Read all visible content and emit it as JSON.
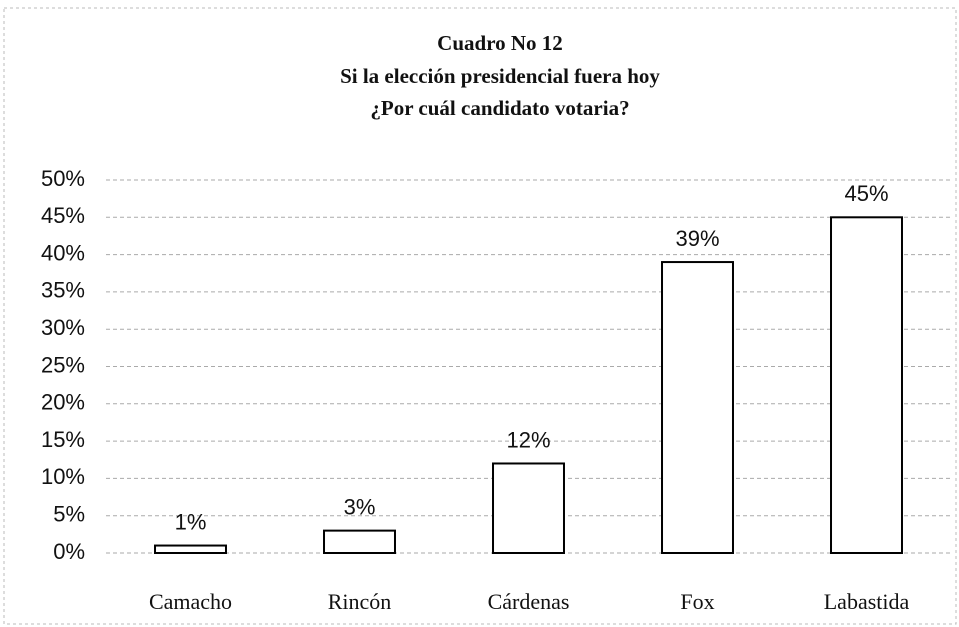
{
  "chart_data": {
    "type": "bar",
    "title": "Cuadro No 12",
    "subtitle": [
      "Si la elección presidencial fuera hoy",
      "¿Por cuál candidato votaria?"
    ],
    "categories": [
      "Camacho",
      "Rincón",
      "Cárdenas",
      "Fox",
      "Labastida"
    ],
    "values": [
      1,
      3,
      12,
      39,
      45
    ],
    "value_labels": [
      "1%",
      "3%",
      "12%",
      "39%",
      "45%"
    ],
    "color": "#ffffff",
    "ylim": [
      0,
      50
    ],
    "yticks": [
      {
        "value": 0,
        "label": "0%"
      },
      {
        "value": 5,
        "label": "5%"
      },
      {
        "value": 10,
        "label": "10%"
      },
      {
        "value": 15,
        "label": "15%"
      },
      {
        "value": 20,
        "label": "20%"
      },
      {
        "value": 25,
        "label": "25%"
      },
      {
        "value": 30,
        "label": "30%"
      },
      {
        "value": 35,
        "label": "35%"
      },
      {
        "value": 40,
        "label": "40%"
      },
      {
        "value": 45,
        "label": "45%"
      },
      {
        "value": 50,
        "label": "50%"
      }
    ],
    "grid": true
  }
}
